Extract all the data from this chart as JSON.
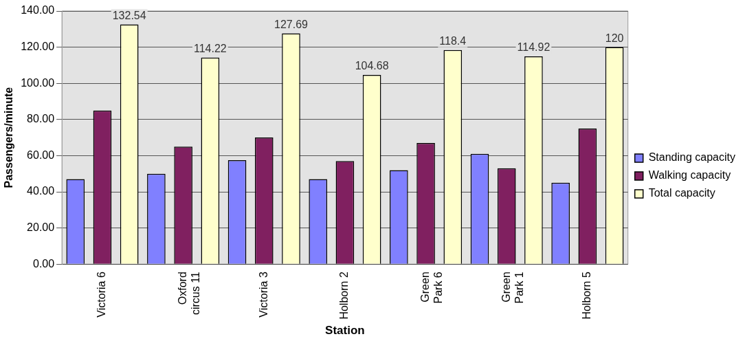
{
  "chart_data": {
    "type": "bar",
    "xlabel": "Station",
    "ylabel": "Passengers/minute",
    "categories": [
      "Victoria 6",
      "Oxford circus 11",
      "Victoria 3",
      "Holborn 2",
      "Green Park 6",
      "Green Park 1",
      "Holborn 5"
    ],
    "series": [
      {
        "name": "Standing capacity",
        "color": "#8080ff",
        "values": [
          47,
          50,
          57.5,
          47,
          52,
          61,
          45
        ]
      },
      {
        "name": "Walking capacity",
        "color": "#802060",
        "values": [
          85,
          65,
          70,
          57,
          67,
          53,
          75
        ]
      },
      {
        "name": "Total capacity",
        "color": "#ffffcc",
        "values": [
          132.54,
          114.22,
          127.69,
          104.68,
          118.4,
          114.92,
          120
        ],
        "value_labels": [
          "132.54",
          "114.22",
          "127.69",
          "104.68",
          "118.4",
          "114.92",
          "120"
        ]
      }
    ],
    "ylim": [
      0,
      140
    ],
    "yticks": [
      {
        "value": 0,
        "label": "0.00"
      },
      {
        "value": 20,
        "label": "20.00"
      },
      {
        "value": 40,
        "label": "40.00"
      },
      {
        "value": 60,
        "label": "60.00"
      },
      {
        "value": 80,
        "label": "80.00"
      },
      {
        "value": 100,
        "label": "100.00"
      },
      {
        "value": 120,
        "label": "120.00"
      },
      {
        "value": 140,
        "label": "140.00"
      }
    ],
    "grid": "y",
    "legend": "right"
  }
}
